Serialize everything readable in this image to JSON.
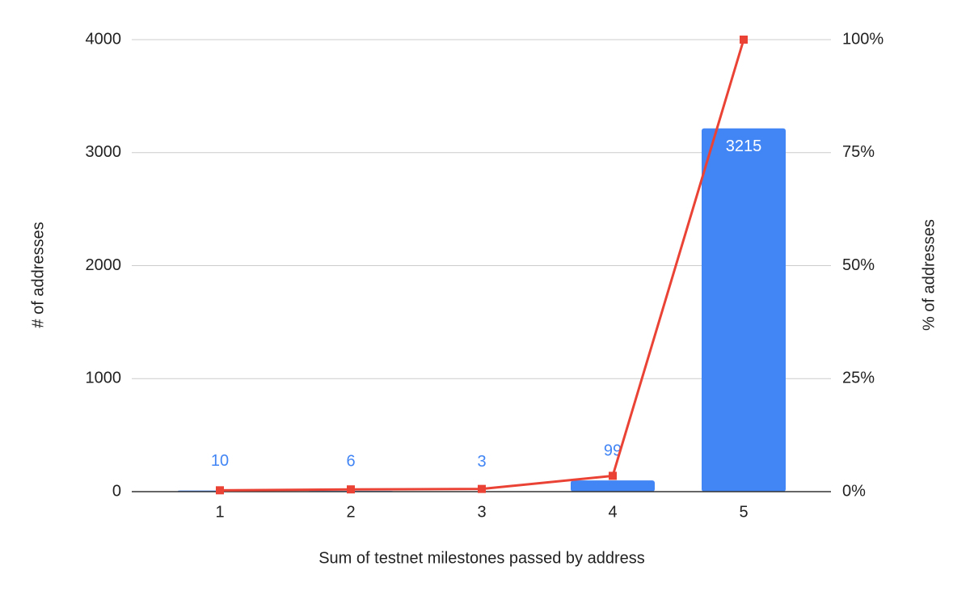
{
  "chart_data": {
    "type": "bar_line",
    "x_label": "Sum of testnet milestones passed by address",
    "y_label": "# of addresses",
    "y2_label": "% of addresses",
    "categories": [
      "1",
      "2",
      "3",
      "4",
      "5"
    ],
    "series": [
      {
        "type": "bar",
        "color": "#4285f4",
        "values": [
          10,
          6,
          3,
          99,
          3215
        ],
        "data_labels": true
      },
      {
        "type": "line",
        "axis": "y2",
        "color": "#ea4335",
        "values": [
          0.3,
          0.5,
          0.6,
          3.5,
          100
        ]
      }
    ],
    "ylim": [
      0,
      4000
    ],
    "yticks": [
      0,
      1000,
      2000,
      3000,
      4000
    ],
    "y2lim": [
      0,
      100
    ],
    "y2ticks": [
      {
        "value": 0,
        "label": "0%"
      },
      {
        "value": 25,
        "label": "25%"
      },
      {
        "value": 50,
        "label": "50%"
      },
      {
        "value": 75,
        "label": "75%"
      },
      {
        "value": 100,
        "label": "100%"
      }
    ],
    "grid": true
  }
}
